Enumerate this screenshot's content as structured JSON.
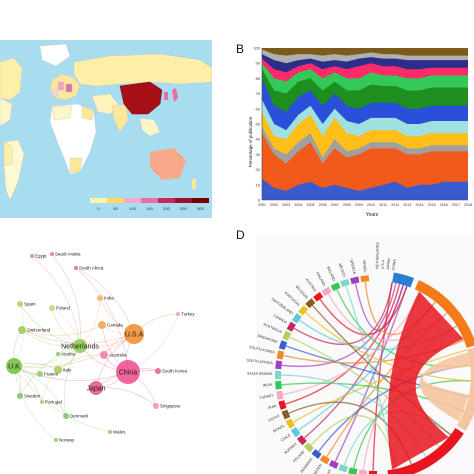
{
  "panels": {
    "b_label": "B",
    "d_label": "D"
  },
  "map_panel": {
    "legend_ticks": [
      "0",
      "50",
      "100",
      "150",
      "200",
      "250",
      "300"
    ],
    "legend_colors": [
      "#fff3b0",
      "#ffd966",
      "#f7a8c8",
      "#e76fa8",
      "#c8285a",
      "#a00f2a",
      "#7a0000"
    ]
  },
  "area_panel": {
    "ylabel": "Percentage of publication",
    "xlabel": "Years",
    "y_ticks": [
      "0",
      "10",
      "20",
      "30",
      "40",
      "50",
      "60",
      "70",
      "80",
      "90",
      "100"
    ],
    "x_ticks": [
      "2001",
      "2002",
      "2003",
      "2004",
      "2005",
      "2006",
      "2007",
      "2008",
      "2009",
      "2010",
      "2011",
      "2012",
      "2013",
      "2014",
      "2015",
      "2016",
      "2017",
      "2018"
    ]
  },
  "network_panel": {
    "nodes": [
      {
        "label": "China",
        "color": "#ec4a8c",
        "r": 12
      },
      {
        "label": "U.S.A",
        "color": "#f08a2c",
        "r": 10
      },
      {
        "label": "Netherlands",
        "color": "#8cc84b",
        "r": 7
      },
      {
        "label": "U.K",
        "color": "#6fbf3a",
        "r": 8
      },
      {
        "label": "Japan",
        "color": "#e0508a",
        "r": 7
      },
      {
        "label": "Canada",
        "color": "#f0a050",
        "r": 4
      },
      {
        "label": "Switzerland",
        "color": "#9ac850",
        "r": 4
      },
      {
        "label": "Italy",
        "color": "#a8c850",
        "r": 4
      },
      {
        "label": "Australia",
        "color": "#f07aa0",
        "r": 4
      },
      {
        "label": "South Korea",
        "color": "#e85a8a",
        "r": 3
      },
      {
        "label": "Singapore",
        "color": "#f090b0",
        "r": 3
      },
      {
        "label": "Spain",
        "color": "#b0d060",
        "r": 3
      },
      {
        "label": "Poland",
        "color": "#c0d870",
        "r": 3
      },
      {
        "label": "India",
        "color": "#f4b060",
        "r": 3
      },
      {
        "label": "Turkey",
        "color": "#f0a0a0",
        "r": 2
      },
      {
        "label": "Denmark",
        "color": "#7abf6a",
        "r": 3
      },
      {
        "label": "Portugal",
        "color": "#9ad070",
        "r": 2
      },
      {
        "label": "Wales",
        "color": "#88c868",
        "r": 2
      },
      {
        "label": "Norway",
        "color": "#90c870",
        "r": 2
      },
      {
        "label": "Sweden",
        "color": "#78c060",
        "r": 3
      },
      {
        "label": "Egypt",
        "color": "#e878b0",
        "r": 2
      },
      {
        "label": "Saudi Arabia",
        "color": "#e070a8",
        "r": 2
      },
      {
        "label": "South Africa",
        "color": "#d868a0",
        "r": 2
      },
      {
        "label": "Austria",
        "color": "#80c060",
        "r": 2
      },
      {
        "label": "France",
        "color": "#90c858",
        "r": 3
      }
    ]
  },
  "chord_panel": {
    "left_labels": [
      "ITALY",
      "U.K",
      "SPAIN",
      "FRANCE",
      "GERMANY",
      "SWEDEN",
      "DENMARK",
      "POLAND",
      "NORWAY",
      "CHILE",
      "BRAZIL",
      "EGYPT",
      "IRAN",
      "TURKEY",
      "INDIA",
      "SAUDI ARABIA",
      "SOUTH AFRICA",
      "SOUTH KOREA",
      "SINGAPORE",
      "AUSTRALIA",
      "CANADA",
      "SWITZERLAND",
      "PORTUGAL",
      "BELGIUM",
      "AUSTRIA",
      "FINLAND",
      "IRELAND",
      "MEXICO",
      "GREECE",
      "ISRAEL"
    ],
    "top_labels": [
      "NETHERLANDS",
      "U.S.A",
      "JAPAN",
      "CHINA"
    ]
  }
}
